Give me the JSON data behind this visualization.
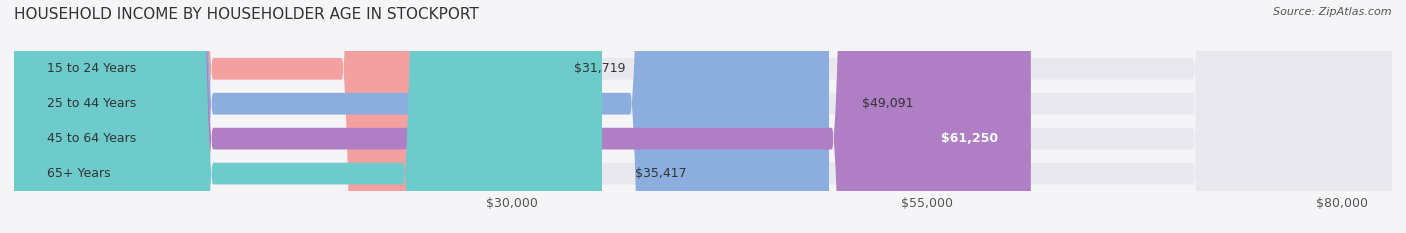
{
  "title": "HOUSEHOLD INCOME BY HOUSEHOLDER AGE IN STOCKPORT",
  "source": "Source: ZipAtlas.com",
  "categories": [
    "15 to 24 Years",
    "25 to 44 Years",
    "45 to 64 Years",
    "65+ Years"
  ],
  "values": [
    31719,
    49091,
    61250,
    35417
  ],
  "bar_colors": [
    "#f4a0a0",
    "#8baede",
    "#b07ec4",
    "#6dcbcb"
  ],
  "track_color": "#e8e8ee",
  "label_values": [
    "$31,719",
    "$49,091",
    "$61,250",
    "$35,417"
  ],
  "label_inside": [
    false,
    false,
    true,
    false
  ],
  "xlim": [
    0,
    83000
  ],
  "xticks": [
    30000,
    55000,
    80000
  ],
  "xticklabels": [
    "$30,000",
    "$55,000",
    "$80,000"
  ],
  "background_color": "#f5f5f8",
  "bar_height": 0.62,
  "title_fontsize": 11,
  "source_fontsize": 8,
  "label_fontsize": 9,
  "tick_fontsize": 9,
  "category_fontsize": 9
}
